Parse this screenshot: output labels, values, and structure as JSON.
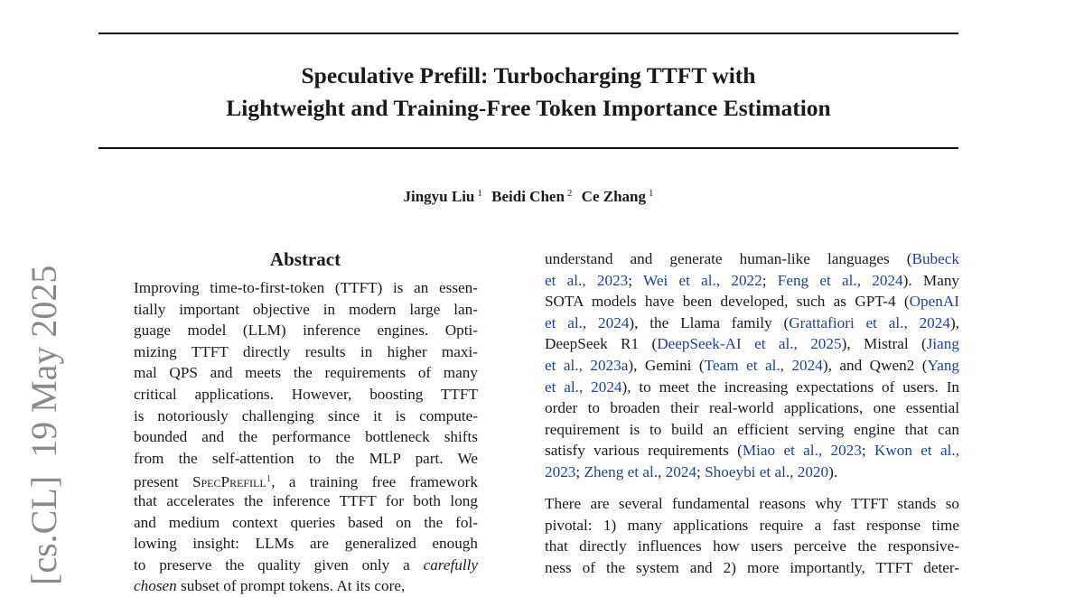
{
  "title": {
    "line1": "Speculative Prefill: Turbocharging TTFT with",
    "line2": "Lightweight and Training-Free Token Importance Estimation"
  },
  "authors": [
    {
      "name": "Jingyu Liu",
      "affil": "1"
    },
    {
      "name": "Beidi Chen",
      "affil": "2"
    },
    {
      "name": "Ce Zhang",
      "affil": "1"
    }
  ],
  "arxiv_stamp": "[cs.CL]  19 May 2025",
  "abstract": {
    "heading": "Abstract",
    "lines": [
      "Improving time-to-first-token (TTFT) is an essen-",
      "tially important objective in modern large lan-",
      "guage model (LLM) inference engines.  Opti-",
      "mizing TTFT directly results in higher maxi-",
      "mal QPS and meets the requirements of many",
      "critical applications.  However, boosting TTFT",
      "is notoriously challenging since it is compute-",
      "bounded and the performance bottleneck shifts",
      "from the self-attention to the MLP part.  We",
      "that accelerates the inference TTFT for both long",
      "and medium context queries based on the fol-",
      "lowing insight:  LLMs are generalized enough",
      "subset of prompt tokens.  At its core,"
    ],
    "present_prefix": "present",
    "specprefill_name": "SpecPrefill",
    "footnote_mark": "1",
    "present_suffix": ", a training free framework",
    "preserve_prefix": "to preserve the quality given only a",
    "carefully": "carefully",
    "chosen": "chosen"
  },
  "intro": {
    "p1": {
      "l1_text": "understand and generate human-like languages (",
      "l1_cite": "Bubeck",
      "l2_cite_a": "et al., 2023",
      "l2_sep1": "; ",
      "l2_cite_b": "Wei et al., 2022",
      "l2_sep2": "; ",
      "l2_cite_c": "Feng et al., 2024",
      "l2_tail": ").  Many",
      "l3_text": "SOTA models have been developed, such as GPT-4 (",
      "l3_cite": "OpenAI",
      "l4_cite": "et al., 2024",
      "l4_mid": "), the Llama family (",
      "l4_cite2": "Grattafiori et al., 2024",
      "l4_tail": "),",
      "l5_text": "DeepSeek R1 (",
      "l5_cite": "DeepSeek-AI et al., 2025",
      "l5_mid": "), Mistral (",
      "l5_cite2": "Jiang",
      "l6_cite": "et al., 2023a",
      "l6_mid": "), Gemini (",
      "l6_cite2": "Team et al., 2024",
      "l6_mid2": "), and Qwen2 (",
      "l6_cite3": "Yang",
      "l7_cite": "et al., 2024",
      "l7_tail": "), to meet the increasing expectations of users. In",
      "l8": "order to broaden their real-world applications, one essential",
      "l9": "requirement is to build an efficient serving engine that can",
      "l10_text": "satisfy various requirements (",
      "l10_cite": "Miao et al., 2023",
      "l10_sep": "; ",
      "l10_cite2": "Kwon et al.,",
      "l11_cite": "2023",
      "l11_sep": "; ",
      "l11_cite2": "Zheng et al., 2024",
      "l11_sep2": "; ",
      "l11_cite3": "Shoeybi et al., 2020",
      "l11_tail": ")."
    },
    "p2": {
      "lines": [
        "There are several fundamental reasons why TTFT stands so",
        "pivotal: 1) many applications require a fast response time",
        "that directly influences how users perceive the responsive-",
        "ness of the system and 2) more importantly, TTFT deter-"
      ]
    }
  }
}
